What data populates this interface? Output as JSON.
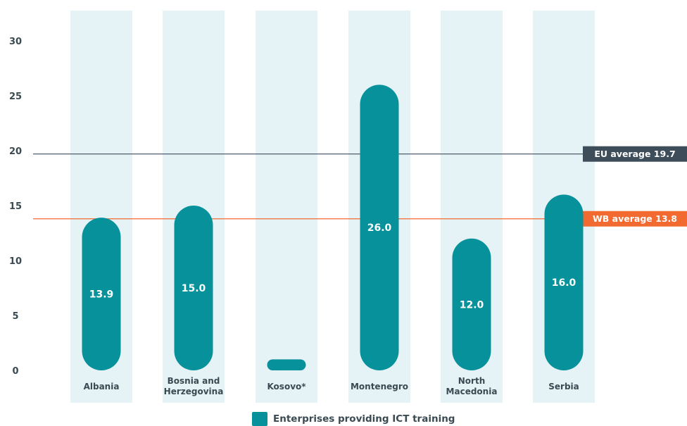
{
  "chart_data": {
    "type": "bar",
    "categories": [
      [
        "Albania"
      ],
      [
        "Bosnia and",
        "Herzegovina"
      ],
      [
        "Kosovo*"
      ],
      [
        "Montenegro"
      ],
      [
        "North",
        "Macedonia"
      ],
      [
        "Serbia"
      ]
    ],
    "series": [
      {
        "name": "Enterprises providing ICT training",
        "values": [
          13.9,
          15.0,
          1.0,
          26.0,
          12.0,
          16.0
        ],
        "labels": [
          "13.9",
          "15.0",
          "",
          "26.0",
          "12.0",
          "16.0"
        ],
        "color": "#06919b"
      }
    ],
    "reference_lines": [
      {
        "label": "EU average 19.7",
        "value": 19.7,
        "color": "#3d4d5a"
      },
      {
        "label": "WB average 13.8",
        "value": 13.8,
        "color": "#f26a30"
      }
    ],
    "yticks": [
      "0",
      "5",
      "10",
      "15",
      "20",
      "25",
      "30"
    ],
    "ytick_values": [
      0,
      5,
      10,
      15,
      20,
      25,
      30
    ],
    "ylim": [
      0,
      30
    ],
    "grid": false,
    "legend_position": "bottom-center",
    "column_background_color": "#e6f3f6"
  }
}
